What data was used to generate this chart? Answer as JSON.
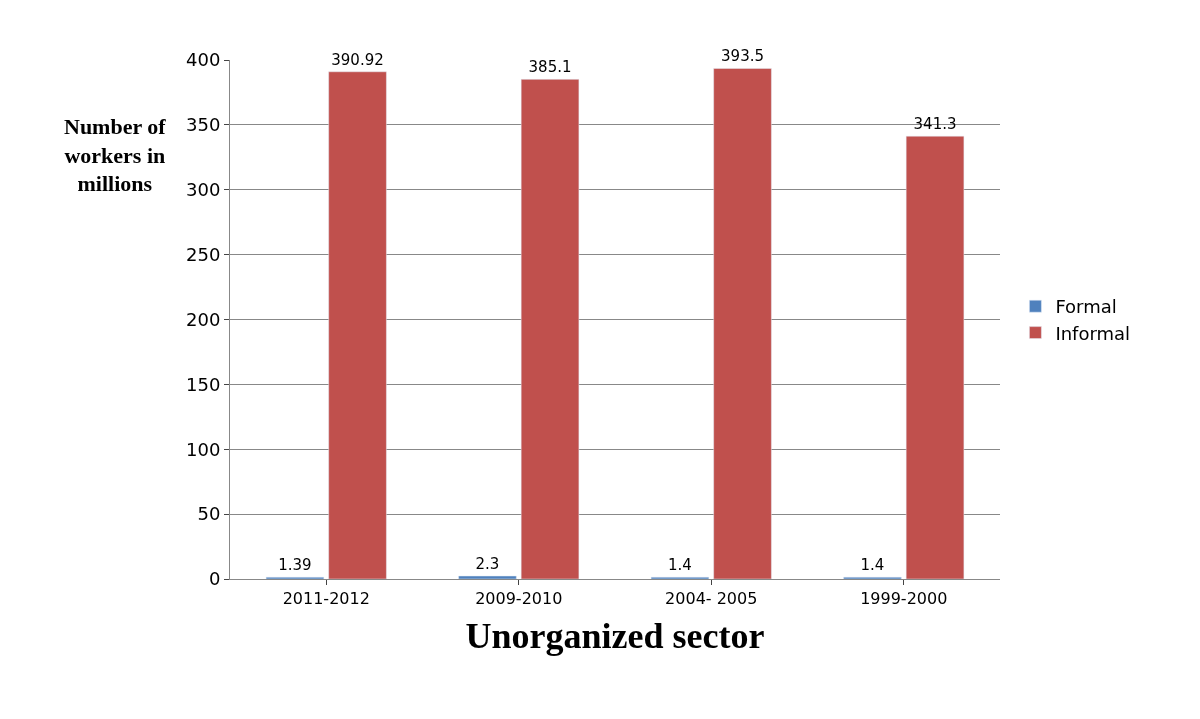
{
  "chart_data": {
    "type": "bar",
    "xlabel": "Unorganized sector",
    "ylabel": "Number of workers in millions",
    "categories": [
      "2011-2012",
      "2009-2010",
      "2004- 2005",
      "1999-2000"
    ],
    "series": [
      {
        "name": "Formal",
        "color": "#4f81bd",
        "values": [
          1.39,
          2.3,
          1.4,
          1.4
        ]
      },
      {
        "name": "Informal",
        "color": "#c0504d",
        "values": [
          390.92,
          385.1,
          393.5,
          341.3
        ]
      }
    ],
    "ylim": [
      0,
      400
    ],
    "yticks": [
      0,
      50,
      100,
      150,
      200,
      250,
      300,
      350,
      400
    ],
    "grid": "y",
    "legend": "right",
    "data_labels": true
  }
}
